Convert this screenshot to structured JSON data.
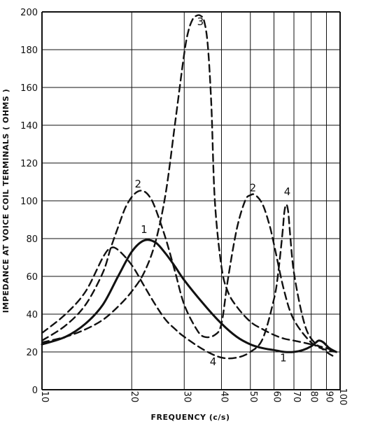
{
  "chart_data": {
    "type": "line",
    "xlabel": "FREQUENCY (c/s)",
    "ylabel": "IMPEDANCE AT VOICE COIL TERMINALS ( OHMS )",
    "xscale": "log",
    "xlim": [
      10,
      100
    ],
    "ylim": [
      0,
      200
    ],
    "grid": true,
    "x_ticks": [
      10,
      20,
      30,
      40,
      50,
      60,
      70,
      80,
      90,
      100
    ],
    "y_ticks": [
      0,
      20,
      40,
      60,
      80,
      100,
      120,
      140,
      160,
      180,
      200
    ],
    "series": [
      {
        "name": "1",
        "style": "solid",
        "x": [
          10,
          12,
          14,
          16,
          18,
          20,
          22,
          24,
          26,
          28,
          30,
          35,
          40,
          45,
          50,
          55,
          60,
          65,
          70,
          75,
          80,
          83,
          85,
          88,
          92,
          97
        ],
        "y": [
          24,
          28,
          35,
          45,
          60,
          73,
          79,
          78,
          72,
          65,
          58,
          45,
          35,
          28,
          24,
          22,
          21,
          20,
          20,
          21,
          23,
          25,
          26,
          25,
          22,
          20
        ]
      },
      {
        "name": "2",
        "style": "dashed",
        "x": [
          10,
          12,
          14,
          16,
          17,
          18,
          19,
          20,
          21,
          22,
          23,
          24,
          26,
          28,
          30,
          33,
          35,
          38,
          40,
          42,
          45,
          48,
          50,
          52,
          55,
          58,
          60,
          65,
          70,
          80,
          90,
          97
        ],
        "y": [
          26,
          34,
          45,
          62,
          75,
          86,
          96,
          102,
          105,
          105,
          102,
          96,
          80,
          62,
          45,
          32,
          28,
          29,
          35,
          58,
          85,
          100,
          103,
          103,
          98,
          87,
          77,
          52,
          37,
          25,
          21,
          20
        ]
      },
      {
        "name": "3",
        "style": "dashed",
        "x": [
          10,
          12,
          14,
          16,
          18,
          20,
          22,
          24,
          26,
          28,
          30,
          31,
          32,
          33,
          34,
          35,
          36,
          37,
          38,
          40,
          42,
          45,
          50,
          55,
          60,
          65,
          70,
          80,
          90,
          97
        ],
        "y": [
          25,
          28,
          32,
          37,
          44,
          52,
          62,
          78,
          104,
          142,
          178,
          190,
          196,
          198,
          198,
          195,
          182,
          150,
          100,
          65,
          52,
          44,
          36,
          32,
          29,
          27,
          26,
          24,
          22,
          20
        ]
      },
      {
        "name": "4",
        "style": "dashed",
        "x": [
          10,
          12,
          14,
          16,
          17,
          18,
          20,
          22,
          24,
          26,
          28,
          30,
          35,
          40,
          45,
          50,
          55,
          60,
          62,
          64,
          65,
          66,
          67,
          68,
          70,
          75,
          80,
          90,
          97
        ],
        "y": [
          30,
          40,
          52,
          70,
          75,
          74,
          66,
          55,
          45,
          37,
          32,
          28,
          21,
          17,
          17,
          20,
          27,
          48,
          62,
          82,
          94,
          98,
          94,
          82,
          62,
          38,
          27,
          20,
          17
        ]
      }
    ],
    "annotations": [
      {
        "text": "1",
        "x": 22,
        "y": 83
      },
      {
        "text": "2",
        "x": 21,
        "y": 107
      },
      {
        "text": "3",
        "x": 34,
        "y": 193
      },
      {
        "text": "2",
        "x": 51,
        "y": 105
      },
      {
        "text": "4",
        "x": 66.5,
        "y": 103
      },
      {
        "text": "4",
        "x": 37.5,
        "y": 13
      },
      {
        "text": "1",
        "x": 64.5,
        "y": 15
      }
    ]
  }
}
